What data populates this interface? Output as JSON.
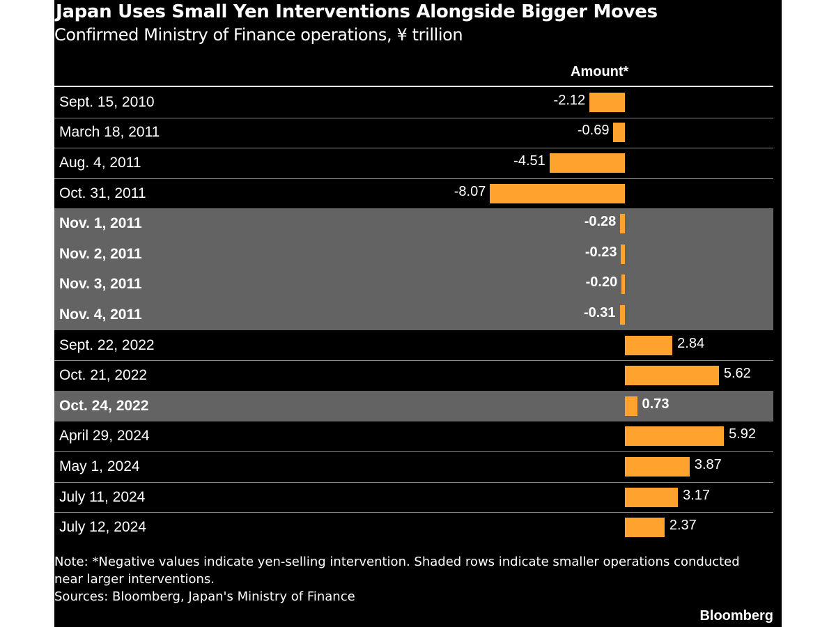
{
  "title": "Japan Uses Small Yen Interventions Alongside Bigger Moves",
  "subtitle": "Confirmed Ministry of Finance operations, ¥ trillion",
  "column_header": "Amount*",
  "note": "Note: *Negative values indicate yen-selling intervention. Shaded rows indicate smaller operations conducted near larger interventions.",
  "sources": "Sources: Bloomberg, Japan's Ministry of Finance",
  "brand": "Bloomberg",
  "colors": {
    "background": "#000000",
    "bar": "#ffa22e",
    "shaded_row": "#636363",
    "text": "#ffffff"
  },
  "chart_data": {
    "type": "bar",
    "orientation": "horizontal",
    "categories": [
      "Sept. 15, 2010",
      "March 18, 2011",
      "Aug. 4, 2011",
      "Oct. 31, 2011",
      "Nov. 1, 2011",
      "Nov. 2, 2011",
      "Nov. 3, 2011",
      "Nov. 4, 2011",
      "Sept. 22, 2022",
      "Oct. 21, 2022",
      "Oct. 24, 2022",
      "April 29, 2024",
      "May 1, 2024",
      "July 11, 2024",
      "July 12, 2024"
    ],
    "values": [
      -2.12,
      -0.69,
      -4.51,
      -8.07,
      -0.28,
      -0.23,
      -0.2,
      -0.31,
      2.84,
      5.62,
      0.73,
      5.92,
      3.87,
      3.17,
      2.37
    ],
    "value_labels": [
      "-2.12",
      "-0.69",
      "-4.51",
      "-8.07",
      "-0.28",
      "-0.23",
      "-0.20",
      "-0.31",
      "2.84",
      "5.62",
      "0.73",
      "5.92",
      "3.87",
      "3.17",
      "2.37"
    ],
    "shaded": [
      false,
      false,
      false,
      false,
      true,
      true,
      true,
      true,
      false,
      false,
      true,
      false,
      false,
      false,
      false
    ],
    "grid": false,
    "legend": "none"
  }
}
